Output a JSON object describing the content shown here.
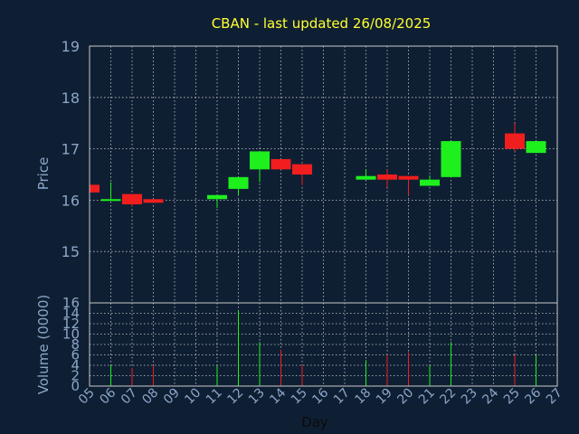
{
  "chart_data": {
    "type": "candlestick",
    "title": "CBAN - last updated 26/08/2025",
    "ylabel": "Price",
    "volume_ylabel": "Volume (0000)",
    "xlabel": "Day",
    "ylim": [
      14,
      19
    ],
    "price_ticks": [
      "15",
      "16",
      "17",
      "18",
      "19"
    ],
    "volume_ylim": [
      0,
      16
    ],
    "volume_ticks": [
      "0",
      "2",
      "4",
      "6",
      "8",
      "10",
      "12",
      "14",
      "16"
    ],
    "x_ticks": [
      "05",
      "06",
      "07",
      "08",
      "09",
      "10",
      "11",
      "12",
      "13",
      "14",
      "15",
      "16",
      "17",
      "18",
      "19",
      "20",
      "21",
      "22",
      "23",
      "24",
      "25",
      "26",
      "27"
    ],
    "grid": true,
    "colors": {
      "up": "#1ef01e",
      "down": "#f01e1e",
      "background": "#0f1f33",
      "title": "#ffff33",
      "text": "#8aa6c8"
    },
    "candles": [
      {
        "day": "05",
        "open": 16.3,
        "close": 16.15,
        "high": 16.3,
        "low": 16.15,
        "volume": 0
      },
      {
        "day": "06",
        "open": 16.0,
        "close": 16.02,
        "high": 16.35,
        "low": 16.0,
        "volume": 4
      },
      {
        "day": "07",
        "open": 16.12,
        "close": 15.92,
        "high": 16.12,
        "low": 15.88,
        "volume": 3.5
      },
      {
        "day": "08",
        "open": 16.02,
        "close": 15.95,
        "high": 16.02,
        "low": 15.95,
        "volume": 4
      },
      {
        "day": "11",
        "open": 16.02,
        "close": 16.1,
        "high": 16.1,
        "low": 15.85,
        "volume": 4
      },
      {
        "day": "12",
        "open": 16.22,
        "close": 16.45,
        "high": 16.45,
        "low": 16.1,
        "volume": 14.5
      },
      {
        "day": "13",
        "open": 16.6,
        "close": 16.95,
        "high": 16.95,
        "low": 16.35,
        "volume": 8.5
      },
      {
        "day": "14",
        "open": 16.8,
        "close": 16.6,
        "high": 16.8,
        "low": 16.6,
        "volume": 7
      },
      {
        "day": "15",
        "open": 16.7,
        "close": 16.5,
        "high": 16.7,
        "low": 16.3,
        "volume": 4
      },
      {
        "day": "18",
        "open": 16.4,
        "close": 16.47,
        "high": 16.6,
        "low": 16.4,
        "volume": 5
      },
      {
        "day": "19",
        "open": 16.5,
        "close": 16.4,
        "high": 16.6,
        "low": 16.25,
        "volume": 6
      },
      {
        "day": "20",
        "open": 16.47,
        "close": 16.4,
        "high": 16.47,
        "low": 16.1,
        "volume": 6.5
      },
      {
        "day": "21",
        "open": 16.28,
        "close": 16.4,
        "high": 16.48,
        "low": 16.28,
        "volume": 4
      },
      {
        "day": "22",
        "open": 16.45,
        "close": 17.15,
        "high": 17.15,
        "low": 16.45,
        "volume": 8.5
      },
      {
        "day": "25",
        "open": 17.3,
        "close": 17.0,
        "high": 17.5,
        "low": 16.95,
        "volume": 6
      },
      {
        "day": "26",
        "open": 16.92,
        "close": 17.15,
        "high": 17.15,
        "low": 16.92,
        "volume": 6
      }
    ]
  }
}
